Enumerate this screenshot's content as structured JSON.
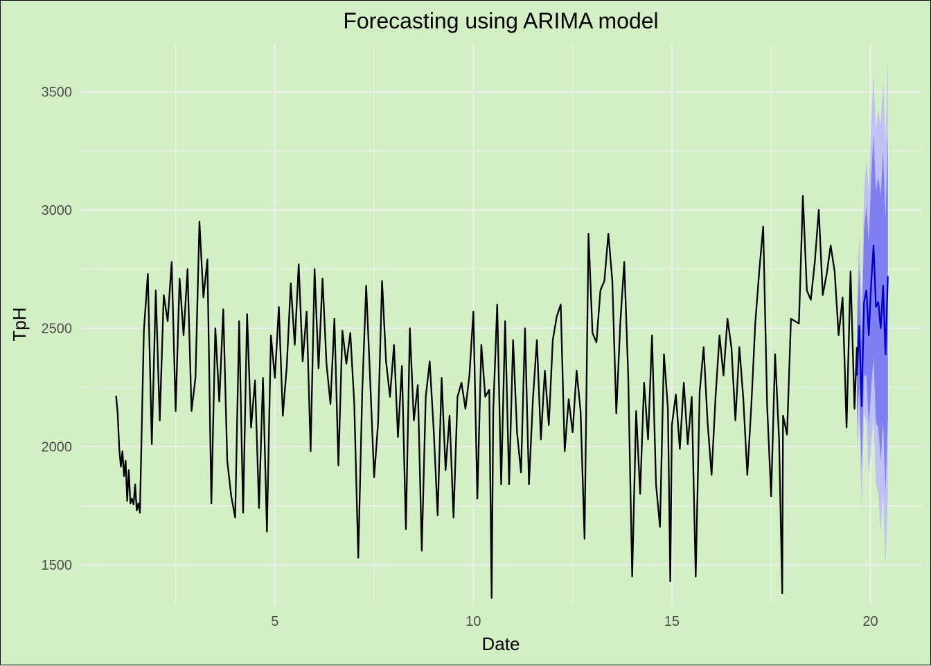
{
  "chart_data": {
    "type": "line",
    "title": "Forecasting using ARIMA model",
    "xlabel": "Date",
    "ylabel": "TpH",
    "xlim": [
      0.1,
      21.3
    ],
    "ylim": [
      1330,
      3700
    ],
    "x_ticks": [
      5,
      10,
      15,
      20
    ],
    "x_tick_labels": [
      "5",
      "10",
      "15",
      "20"
    ],
    "y_ticks": [
      1500,
      2000,
      2500,
      3000,
      3500
    ],
    "y_tick_labels": [
      "1500",
      "2000",
      "2500",
      "3000",
      "3500"
    ],
    "grid": true,
    "legend": "none",
    "colors": {
      "background": "#d3f0c4",
      "grid": "#eeeeee",
      "history": "#000000",
      "forecast": "#0000cc",
      "band80": "#7f7ff2",
      "band95": "#c0c0f4"
    },
    "series": [
      {
        "kind": "history",
        "x": [
          1.0,
          1.04,
          1.08,
          1.12,
          1.16,
          1.2,
          1.24,
          1.28,
          1.32,
          1.36,
          1.4,
          1.44,
          1.48,
          1.52,
          1.56,
          1.6,
          1.7,
          1.8,
          1.9,
          2.0,
          2.1,
          2.2,
          2.3,
          2.4,
          2.5,
          2.6,
          2.7,
          2.8,
          2.9,
          3.0,
          3.1,
          3.2,
          3.3,
          3.4,
          3.5,
          3.6,
          3.7,
          3.8,
          3.9,
          4.0,
          4.1,
          4.2,
          4.3,
          4.4,
          4.5,
          4.6,
          4.7,
          4.8,
          4.9,
          5.0,
          5.1,
          5.2,
          5.3,
          5.4,
          5.5,
          5.6,
          5.7,
          5.8,
          5.9,
          6.0,
          6.1,
          6.2,
          6.3,
          6.4,
          6.5,
          6.6,
          6.7,
          6.8,
          6.9,
          7.0,
          7.1,
          7.2,
          7.3,
          7.4,
          7.5,
          7.6,
          7.7,
          7.8,
          7.9,
          8.0,
          8.1,
          8.2,
          8.3,
          8.4,
          8.5,
          8.6,
          8.7,
          8.8,
          8.9,
          9.0,
          9.1,
          9.2,
          9.3,
          9.4,
          9.5,
          9.6,
          9.7,
          9.8,
          9.9,
          10.0,
          10.1,
          10.2,
          10.3,
          10.4,
          10.46,
          10.5,
          10.6,
          10.7,
          10.8,
          10.9,
          11.0,
          11.1,
          11.2,
          11.3,
          11.4,
          11.5,
          11.6,
          11.7,
          11.8,
          11.9,
          12.0,
          12.1,
          12.2,
          12.3,
          12.4,
          12.5,
          12.6,
          12.7,
          12.8,
          12.9,
          13.0,
          13.1,
          13.2,
          13.3,
          13.4,
          13.5,
          13.6,
          13.7,
          13.8,
          13.9,
          14.0,
          14.1,
          14.2,
          14.3,
          14.4,
          14.5,
          14.6,
          14.7,
          14.8,
          14.9,
          14.96,
          15.0,
          15.1,
          15.2,
          15.3,
          15.4,
          15.5,
          15.6,
          15.7,
          15.8,
          15.9,
          16.0,
          16.1,
          16.2,
          16.3,
          16.4,
          16.5,
          16.6,
          16.7,
          16.8,
          16.9,
          17.0,
          17.1,
          17.2,
          17.3,
          17.4,
          17.5,
          17.6,
          17.7,
          17.78,
          17.8,
          17.9,
          18.0,
          18.1,
          18.2,
          18.3,
          18.4,
          18.5,
          18.6,
          18.7,
          18.8,
          18.9,
          19.0,
          19.1,
          19.2,
          19.3,
          19.4,
          19.5,
          19.6,
          19.66
        ],
        "y": [
          2215,
          2140,
          1990,
          1915,
          1980,
          1875,
          1940,
          1770,
          1900,
          1760,
          1780,
          1755,
          1840,
          1730,
          1760,
          1720,
          2490,
          2730,
          2010,
          2660,
          2110,
          2640,
          2530,
          2780,
          2150,
          2710,
          2470,
          2750,
          2150,
          2290,
          2950,
          2630,
          2790,
          1760,
          2500,
          2190,
          2580,
          1940,
          1790,
          1700,
          2530,
          1720,
          2560,
          2080,
          2280,
          1740,
          2290,
          1640,
          2470,
          2290,
          2590,
          2130,
          2340,
          2690,
          2430,
          2770,
          2360,
          2570,
          1980,
          2750,
          2330,
          2710,
          2350,
          2180,
          2540,
          1920,
          2490,
          2350,
          2480,
          2180,
          1530,
          2230,
          2680,
          2280,
          1870,
          2100,
          2700,
          2360,
          2210,
          2430,
          2040,
          2340,
          1650,
          2500,
          2110,
          2260,
          1560,
          2210,
          2360,
          2070,
          1710,
          2290,
          1900,
          2130,
          1700,
          2210,
          2270,
          2160,
          2300,
          2570,
          1780,
          2430,
          2210,
          2240,
          1360,
          2150,
          2600,
          1840,
          2530,
          1840,
          2450,
          2060,
          1890,
          2500,
          1840,
          2200,
          2450,
          2030,
          2320,
          2090,
          2450,
          2550,
          2600,
          1980,
          2200,
          2060,
          2320,
          2150,
          1610,
          2900,
          2480,
          2440,
          2660,
          2700,
          2900,
          2700,
          2140,
          2520,
          2780,
          2300,
          1450,
          2150,
          1800,
          2270,
          2030,
          2470,
          1840,
          1660,
          2390,
          2160,
          1430,
          2090,
          2220,
          1990,
          2270,
          2010,
          2210,
          1450,
          2230,
          2420,
          2100,
          1880,
          2210,
          2470,
          2300,
          2540,
          2420,
          2110,
          2420,
          2200,
          1880,
          2170,
          2520,
          2740,
          2930,
          2170,
          1790,
          2390,
          2030,
          1380,
          2130,
          2050,
          2540,
          2530,
          2520,
          3060,
          2660,
          2620,
          2780,
          3000,
          2640,
          2730,
          2850,
          2740,
          2470,
          2630,
          2080,
          2740,
          2160,
          2420
        ]
      },
      {
        "kind": "forecast",
        "x": [
          19.66,
          19.72,
          19.78,
          19.84,
          19.9,
          19.96,
          20.02,
          20.08,
          20.14,
          20.2,
          20.26,
          20.32,
          20.38,
          20.44
        ],
        "y": [
          2300,
          2510,
          2170,
          2610,
          2660,
          2470,
          2690,
          2850,
          2590,
          2610,
          2500,
          2680,
          2390,
          2720
        ],
        "lo80": [
          2100,
          2250,
          1900,
          2300,
          2300,
          2080,
          2250,
          2380,
          2100,
          2080,
          1940,
          2110,
          1810,
          2120
        ],
        "hi80": [
          2500,
          2770,
          2440,
          2920,
          3020,
          2860,
          3130,
          3320,
          3080,
          3140,
          3060,
          3250,
          2970,
          3320
        ],
        "lo95": [
          1980,
          2120,
          1740,
          2140,
          2110,
          1870,
          2010,
          2130,
          1840,
          1800,
          1640,
          1810,
          1500,
          1800
        ],
        "hi95": [
          2620,
          2900,
          2600,
          3080,
          3210,
          3070,
          3370,
          3570,
          3340,
          3420,
          3360,
          3550,
          3280,
          3640
        ]
      }
    ]
  }
}
